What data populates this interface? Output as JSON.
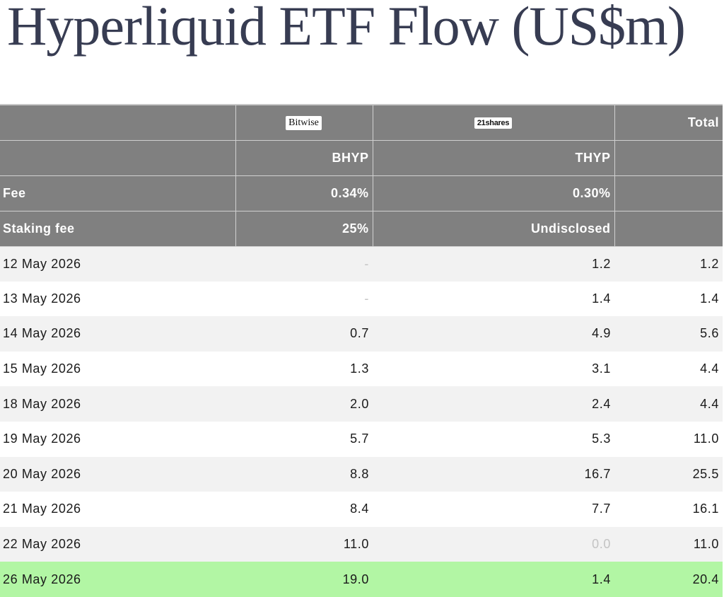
{
  "title": "Hyperliquid ETF Flow (US$m)",
  "header": {
    "issuers": [
      "Bitwise",
      "21shares"
    ],
    "total_label": "Total",
    "tickers": [
      "BHYP",
      "THYP"
    ],
    "fee_label": "Fee",
    "fees": [
      "0.34%",
      "0.30%"
    ],
    "staking_label": "Staking fee",
    "staking_fees": [
      "25%",
      "Undisclosed"
    ]
  },
  "rows": [
    {
      "date": "12 May 2026",
      "bhyp": "-",
      "thyp": "1.2",
      "total": "1.2"
    },
    {
      "date": "13 May 2026",
      "bhyp": "-",
      "thyp": "1.4",
      "total": "1.4"
    },
    {
      "date": "14 May 2026",
      "bhyp": "0.7",
      "thyp": "4.9",
      "total": "5.6"
    },
    {
      "date": "15 May 2026",
      "bhyp": "1.3",
      "thyp": "3.1",
      "total": "4.4"
    },
    {
      "date": "18 May 2026",
      "bhyp": "2.0",
      "thyp": "2.4",
      "total": "4.4"
    },
    {
      "date": "19 May 2026",
      "bhyp": "5.7",
      "thyp": "5.3",
      "total": "11.0"
    },
    {
      "date": "20 May 2026",
      "bhyp": "8.8",
      "thyp": "16.7",
      "total": "25.5"
    },
    {
      "date": "21 May 2026",
      "bhyp": "8.4",
      "thyp": "7.7",
      "total": "16.1"
    },
    {
      "date": "22 May 2026",
      "bhyp": "11.0",
      "thyp": "0.0",
      "total": "11.0"
    },
    {
      "date": "26 May 2026",
      "bhyp": "19.0",
      "thyp": "1.4",
      "total": "20.4"
    }
  ],
  "colors": {
    "header_bg": "#808080",
    "row_alt": "#f2f2f2",
    "highlight": "#b2f6a4",
    "muted_text": "#c4c4c4",
    "title": "#373c52"
  }
}
